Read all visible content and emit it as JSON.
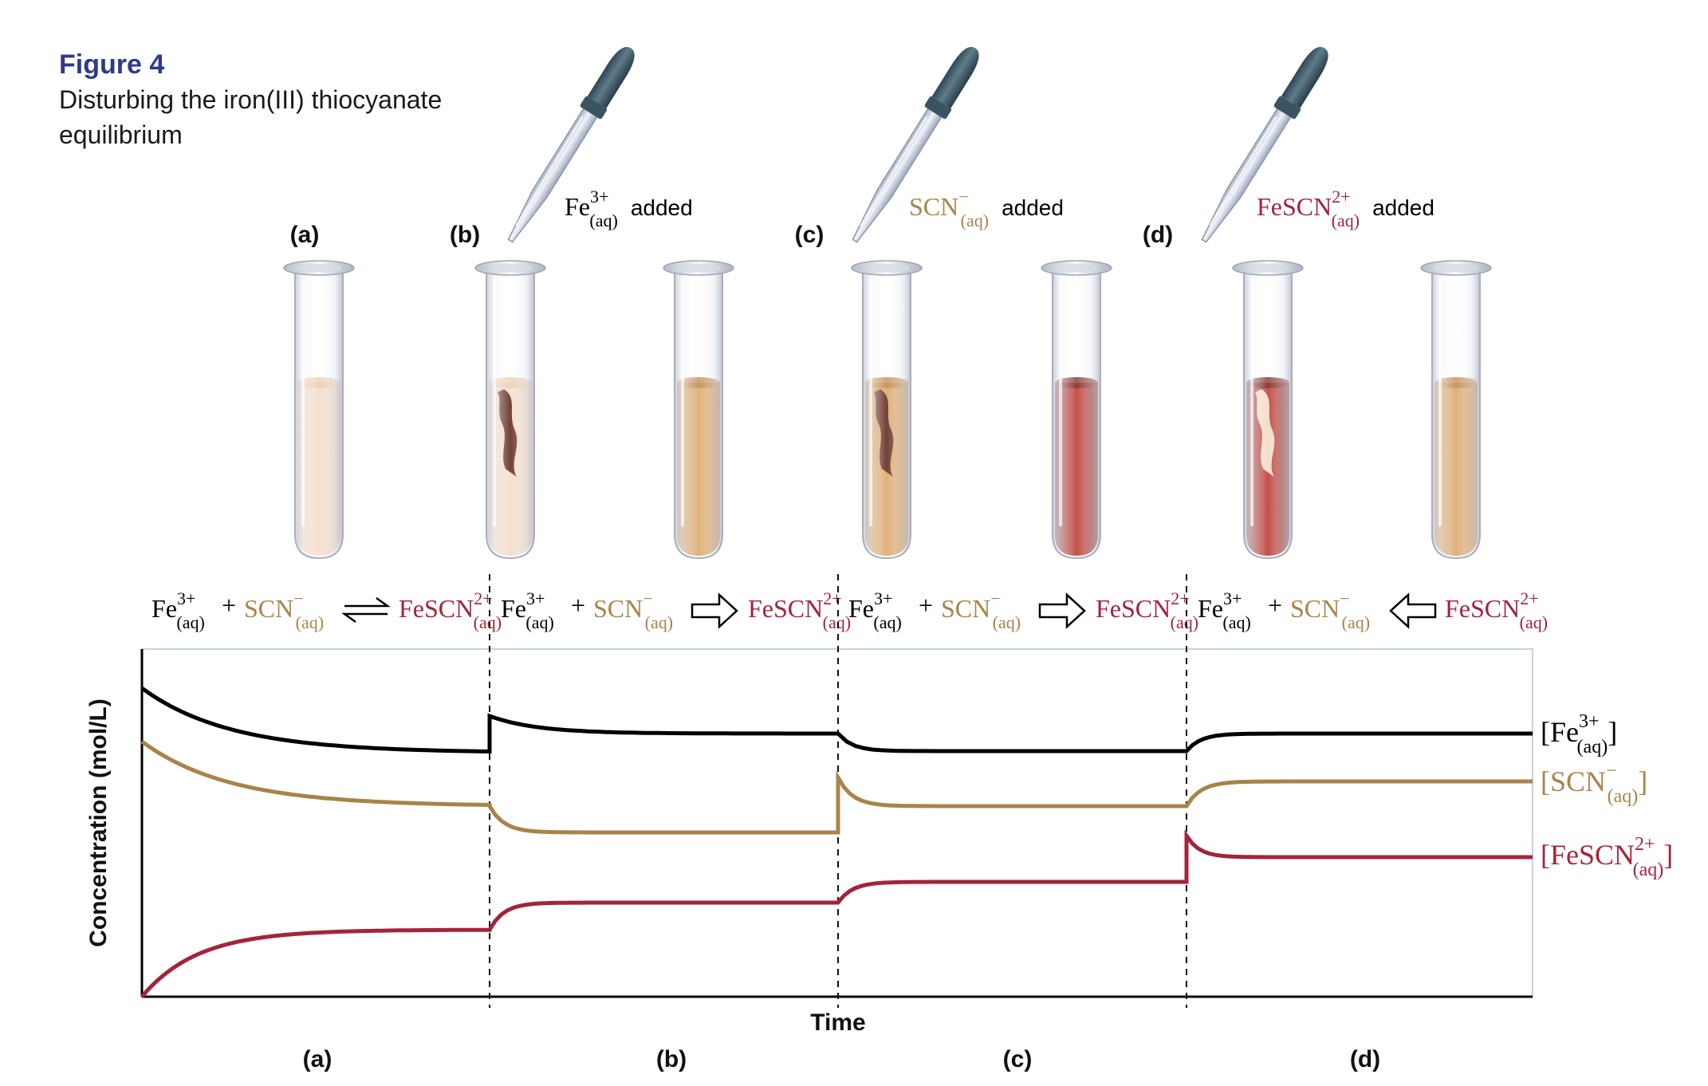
{
  "figure": {
    "label": "Figure 4",
    "caption_line1": "Disturbing the iron(III) thiocyanate",
    "caption_line2": "equilibrium"
  },
  "colors": {
    "navy": "#2e3a8c",
    "black": "#000000",
    "fe": "#000000",
    "scn": "#a8844a",
    "fescn": "#a3243b",
    "plot_border": "#c9cfe6",
    "dropper_bulb": "#4a6775"
  },
  "panel_labels": [
    "(a)",
    "(b)",
    "(c)",
    "(d)"
  ],
  "droppers": [
    {
      "species": "Fe",
      "sup": "3+",
      "sub": "(aq)",
      "word": "added",
      "color": "#000000",
      "icon": "dropper-icon"
    },
    {
      "species": "SCN",
      "sup": "−",
      "sub": "(aq)",
      "word": "added",
      "color": "#a8844a",
      "icon": "dropper-icon"
    },
    {
      "species": "FeSCN",
      "sup": "2+",
      "sub": "(aq)",
      "word": "added",
      "color": "#a3243b",
      "icon": "dropper-icon"
    }
  ],
  "tubes": [
    {
      "liquid": "#f3dcc8",
      "liquid_dark": "#e7c5a8",
      "streak": false
    },
    {
      "liquid": "#f3dcc8",
      "liquid_dark": "#e7c5a8",
      "streak": true,
      "streak_color": "#5a1f12"
    },
    {
      "liquid": "#d9a464",
      "liquid_dark": "#b97a38",
      "streak": false
    },
    {
      "liquid": "#d9a464",
      "liquid_dark": "#b97a38",
      "streak": true,
      "streak_color": "#5a1f12"
    },
    {
      "liquid": "#b8332a",
      "liquid_dark": "#6e120f",
      "streak": false
    },
    {
      "liquid": "#b8332a",
      "liquid_dark": "#6e120f",
      "streak": true,
      "streak_color": "#f3d8c0"
    },
    {
      "liquid": "#d9a464",
      "liquid_dark": "#b97a38",
      "streak": false
    }
  ],
  "equations": [
    {
      "fe": "Fe",
      "fe_sup": "3+",
      "fe_sub": "(aq)",
      "plus": "+",
      "scn": "SCN",
      "scn_sup": "−",
      "scn_sub": "(aq)",
      "arrow": "equilibrium",
      "prod": "FeSCN",
      "prod_sup": "2+",
      "prod_sub": "(aq)"
    },
    {
      "fe": "Fe",
      "fe_sup": "3+",
      "fe_sub": "(aq)",
      "plus": "+",
      "scn": "SCN",
      "scn_sup": "−",
      "scn_sub": "(aq)",
      "arrow": "forward",
      "prod": "FeSCN",
      "prod_sup": "2+",
      "prod_sub": "(aq)"
    },
    {
      "fe": "Fe",
      "fe_sup": "3+",
      "fe_sub": "(aq)",
      "plus": "+",
      "scn": "SCN",
      "scn_sup": "−",
      "scn_sub": "(aq)",
      "arrow": "forward",
      "prod": "FeSCN",
      "prod_sup": "2+",
      "prod_sub": "(aq)"
    },
    {
      "fe": "Fe",
      "fe_sup": "3+",
      "fe_sub": "(aq)",
      "plus": "+",
      "scn": "SCN",
      "scn_sup": "−",
      "scn_sub": "(aq)",
      "arrow": "reverse",
      "prod": "FeSCN",
      "prod_sup": "2+",
      "prod_sub": "(aq)"
    }
  ],
  "graph": {
    "ylabel": "Concentration (mol/L)",
    "xlabel": "Time",
    "segment_labels": [
      "(a)",
      "(b)",
      "(c)",
      "(d)"
    ],
    "series_labels": [
      {
        "open": "[",
        "species": "Fe",
        "sup": "3+",
        "sub": "(aq)",
        "close": "]"
      },
      {
        "open": "[",
        "species": "SCN",
        "sup": "−",
        "sub": "(aq)",
        "close": "]"
      },
      {
        "open": "[",
        "species": "FeSCN",
        "sup": "2+",
        "sub": "(aq)",
        "close": "]"
      }
    ]
  }
}
